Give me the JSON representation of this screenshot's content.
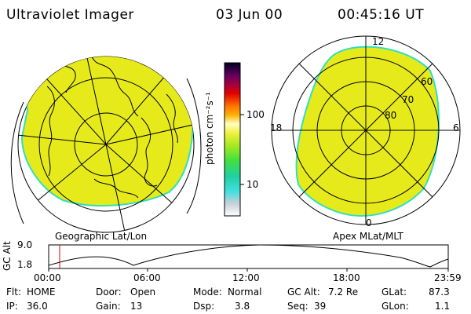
{
  "header": {
    "instrument": "Ultraviolet Imager",
    "date": "03 Jun 00",
    "time": "00:45:16 UT"
  },
  "colorbar": {
    "unit_label": "photon cm⁻²s⁻¹",
    "ticks": [
      "100",
      "10"
    ]
  },
  "left_panel": {
    "caption": "Geographic Lat/Lon"
  },
  "right_panel": {
    "caption": "Apex MLat/MLT",
    "mlt_labels": {
      "top": "12",
      "left": "18",
      "right": "6",
      "bottom": "0"
    },
    "lat_labels": [
      "60",
      "70",
      "80"
    ]
  },
  "altitude_plot": {
    "ylabel": "GC Alt",
    "yticks": [
      "9.0",
      "1.8"
    ],
    "xticks": [
      "00:00",
      "06:00",
      "12:00",
      "18:00",
      "23:59"
    ],
    "marker_color": "#e00000"
  },
  "status": {
    "flt_label": "Flt:",
    "flt_value": "HOME",
    "ip_label": "IP:",
    "ip_value": "36.0",
    "door_label": "Door:",
    "door_value": "Open",
    "gain_label": "Gain:",
    "gain_value": "13",
    "mode_label": "Mode:",
    "mode_value": "Normal",
    "dsp_label": "Dsp:",
    "dsp_value": "3.8",
    "gcalt_label": "GC Alt:",
    "gcalt_value": "7.2 Re",
    "seq_label": "Seq:",
    "seq_value": "39",
    "glat_label": "GLat:",
    "glat_value": "87.3",
    "glon_label": "GLon:",
    "glon_value": "1.1"
  },
  "colors": {
    "aurora_fill": "#e6ea1a",
    "aurora_edge": "#2ee0c0"
  }
}
